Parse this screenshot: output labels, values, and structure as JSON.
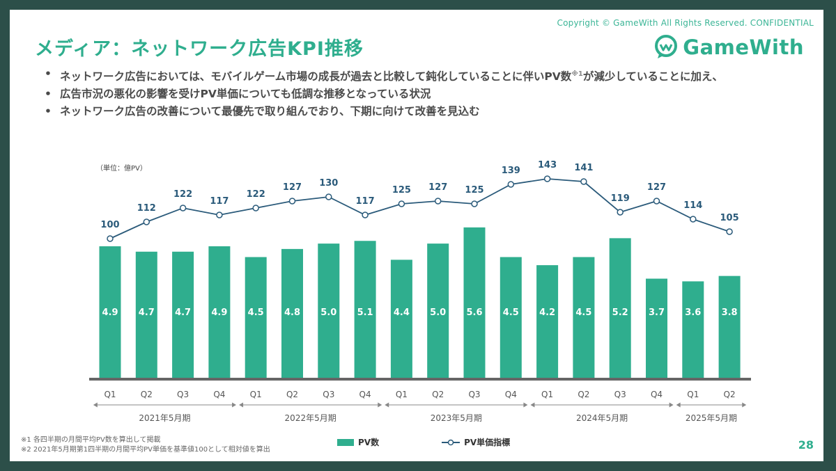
{
  "header": {
    "copyright": "Copyright © GameWith All Rights Reserved. CONFIDENTIAL",
    "title": "メディア：ネットワーク広告KPI推移",
    "logo_text": "GameWith"
  },
  "bullets": [
    {
      "pre": "ネットワーク広告においては、モバイルゲーム市場の成長が過去と比較して鈍化していることに伴いPV数",
      "sup": "※1",
      "post": "が減少していることに加え、"
    },
    {
      "pre": "広告市況の悪化の影響を受けPV単価についても低調な推移となっている状況",
      "sup": "",
      "post": ""
    },
    {
      "pre": "ネットワーク広告の改善について最優先で取り組んでおり、下期に向けて改善を見込む",
      "sup": "",
      "post": ""
    }
  ],
  "footnotes": [
    "※1 各四半期の月間平均PV数を算出して掲載",
    "※2 2021年5月期第1四半期の月間平均PV単価を基準値100として相対値を算出"
  ],
  "page_number": "28",
  "colors": {
    "bar": "#2fae8e",
    "line": "#2a5a7a",
    "label": "#2a5a7a",
    "brand": "#2fae8e"
  },
  "chart_data": {
    "type": "bar",
    "unit_label": "（単位：億PV）",
    "categories": [
      "Q1",
      "Q2",
      "Q3",
      "Q4",
      "Q1",
      "Q2",
      "Q3",
      "Q4",
      "Q1",
      "Q2",
      "Q3",
      "Q4",
      "Q1",
      "Q2",
      "Q3",
      "Q4",
      "Q1",
      "Q2"
    ],
    "series": [
      {
        "name": "PV数",
        "kind": "bar",
        "values": [
          4.9,
          4.7,
          4.7,
          4.9,
          4.5,
          4.8,
          5.0,
          5.1,
          4.4,
          5.0,
          5.6,
          4.5,
          4.2,
          4.5,
          5.2,
          3.7,
          3.6,
          3.8
        ]
      },
      {
        "name": "PV単価指標",
        "kind": "line",
        "values": [
          100,
          112,
          122,
          117,
          122,
          127,
          130,
          117,
          125,
          127,
          125,
          139,
          143,
          141,
          119,
          127,
          114,
          105
        ]
      }
    ],
    "groups": [
      {
        "label": "2021年5月期",
        "start": 0,
        "end": 3
      },
      {
        "label": "2022年5月期",
        "start": 4,
        "end": 7
      },
      {
        "label": "2023年5月期",
        "start": 8,
        "end": 11
      },
      {
        "label": "2024年5月期",
        "start": 12,
        "end": 15
      },
      {
        "label": "2025年5月期",
        "start": 16,
        "end": 17
      }
    ],
    "legend": [
      "PV数",
      "PV単価指標"
    ]
  }
}
